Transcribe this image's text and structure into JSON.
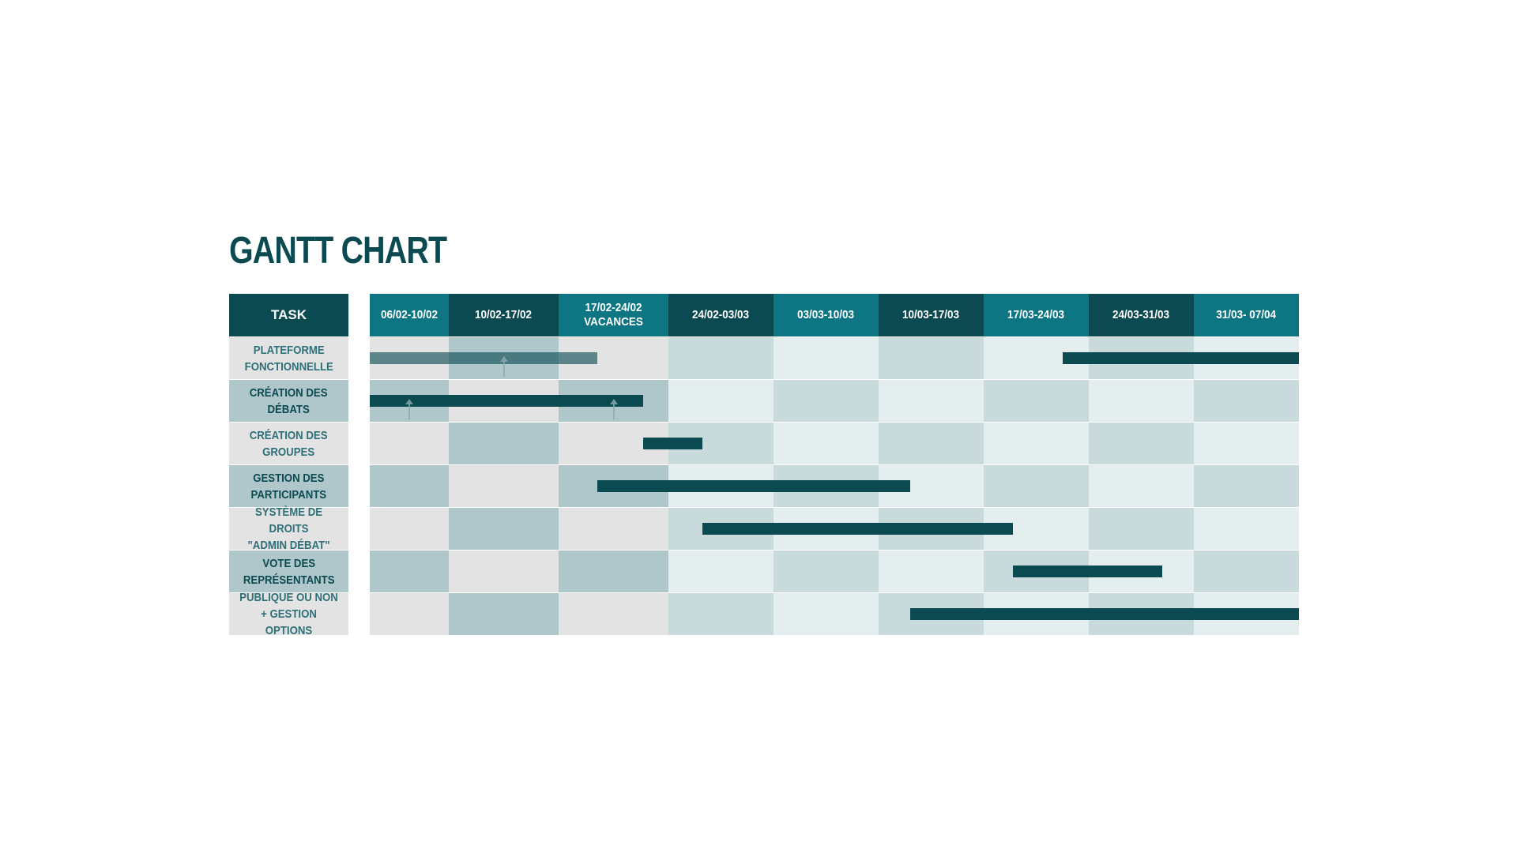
{
  "title": "GANTT CHART",
  "chart_data": {
    "type": "gantt",
    "task_header": "TASK",
    "weeks": [
      {
        "label1": "06/02-10/02",
        "label2": ""
      },
      {
        "label1": "10/02-17/02",
        "label2": ""
      },
      {
        "label1": "17/02-24/02",
        "label2": "VACANCES"
      },
      {
        "label1": "24/02-03/03",
        "label2": ""
      },
      {
        "label1": "03/03-10/03",
        "label2": ""
      },
      {
        "label1": "10/03-17/03",
        "label2": ""
      },
      {
        "label1": "17/03-24/03",
        "label2": ""
      },
      {
        "label1": "24/03-31/03",
        "label2": ""
      },
      {
        "label1": "31/03- 07/04",
        "label2": ""
      }
    ],
    "tasks": [
      {
        "line1": "PLATEFORME",
        "line2": "FONCTIONNELLE",
        "bars": [
          {
            "start": 0,
            "end": 2.35,
            "style": "faded"
          },
          {
            "start": 6.75,
            "end": 9.0,
            "style": "solid"
          }
        ]
      },
      {
        "line1": "CRÉATION DES",
        "line2": "DÉBATS",
        "bars": [
          {
            "start": 0,
            "end": 2.77,
            "style": "solid"
          }
        ]
      },
      {
        "line1": "CRÉATION DES",
        "line2": "GROUPES",
        "bars": [
          {
            "start": 2.77,
            "end": 3.32,
            "style": "solid"
          }
        ]
      },
      {
        "line1": "GESTION DES",
        "line2": "PARTICIPANTS",
        "bars": [
          {
            "start": 2.35,
            "end": 5.3,
            "style": "solid"
          }
        ]
      },
      {
        "line1": "SYSTÈME DE DROITS",
        "line2": "\"ADMIN DÉBAT\"",
        "bars": [
          {
            "start": 3.32,
            "end": 6.28,
            "style": "solid"
          }
        ]
      },
      {
        "line1": "VOTE DES",
        "line2": "REPRÉSENTANTS",
        "bars": [
          {
            "start": 6.28,
            "end": 7.7,
            "style": "solid"
          }
        ]
      },
      {
        "line1": "PUBLIQUE OU NON",
        "line2": "+ GESTION OPTIONS",
        "bars": [
          {
            "start": 5.3,
            "end": 9.0,
            "style": "solid"
          }
        ]
      }
    ],
    "colors": {
      "header_teal": "#0e7683",
      "header_dark": "#0b4a50",
      "bar": "#0b4a50",
      "cell_light_gray": "#e3e3e3",
      "cell_gray_teal": "#afc7ca",
      "cell_pale": "#e5eeef",
      "cell_pale_teal": "#c9dadc"
    }
  }
}
